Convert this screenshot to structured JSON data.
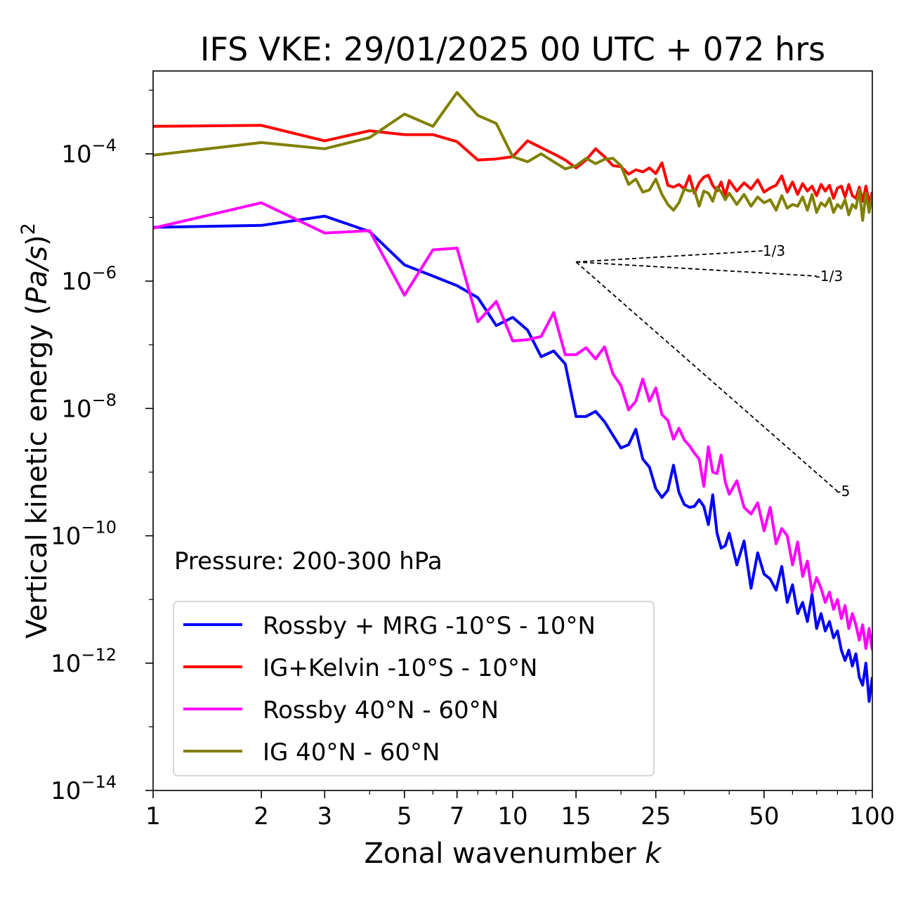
{
  "chart_data": {
    "type": "line",
    "title": "IFS VKE: 29/01/2025 00 UTC + 072 hrs",
    "xlabel": "Zonal wavenumber",
    "xlabel_symbol": "k",
    "ylabel": "Vertical kinetic energy",
    "ylabel_unit_inner": "Pa/s",
    "ylabel_unit_power": "2",
    "xscale": "log",
    "yscale": "log",
    "xlim": [
      1,
      100
    ],
    "ylim": [
      1e-14,
      0.002
    ],
    "x_ticks": [
      1,
      2,
      3,
      5,
      7,
      10,
      15,
      25,
      50,
      100
    ],
    "y_ticks": [
      {
        "value": 1e-14,
        "base": "10",
        "exp": "−14"
      },
      {
        "value": 1e-12,
        "base": "10",
        "exp": "−12"
      },
      {
        "value": 1e-10,
        "base": "10",
        "exp": "−10"
      },
      {
        "value": 1e-08,
        "base": "10",
        "exp": "−8"
      },
      {
        "value": 1e-06,
        "base": "10",
        "exp": "−6"
      },
      {
        "value": 0.0001,
        "base": "10",
        "exp": "−4"
      }
    ],
    "annotation": "Pressure: 200-300 hPa",
    "legend_position": "lower-left",
    "series": [
      {
        "name": "Rossby + MRG -10°S - 10°N",
        "color": "#0000ff",
        "x": [
          1,
          2,
          3,
          4,
          5,
          6,
          7,
          8,
          9,
          10,
          11,
          12,
          13,
          14,
          15,
          16,
          17,
          18,
          19,
          20,
          21,
          22,
          23,
          24,
          25,
          26,
          27,
          28,
          29,
          30,
          31,
          32,
          33,
          34,
          35,
          36,
          37,
          38,
          39,
          40,
          42,
          44,
          46,
          48,
          50,
          52,
          54,
          56,
          58,
          60,
          62,
          64,
          66,
          68,
          70,
          72,
          74,
          76,
          78,
          80,
          82,
          84,
          86,
          88,
          90,
          92,
          94,
          96,
          98,
          100
        ],
        "y": [
          7e-06,
          7.5e-06,
          1.05e-05,
          6e-06,
          1.8e-06,
          1.2e-06,
          8.5e-07,
          5.5e-07,
          2e-07,
          2.7e-07,
          1.7e-07,
          6.5e-08,
          8e-08,
          5e-08,
          7.5e-09,
          7.5e-09,
          9e-09,
          6.2e-09,
          3.8e-09,
          2.4e-09,
          2.7e-09,
          4.7e-09,
          1.6e-09,
          1.2e-09,
          5.5e-10,
          4e-10,
          5.2e-10,
          1.28e-09,
          4.8e-10,
          3.1e-10,
          2.8e-10,
          2.9e-10,
          3.7e-10,
          2.9e-10,
          1.5e-10,
          4.4e-10,
          1.1e-10,
          6.4e-11,
          7e-11,
          1.1e-10,
          3.5e-11,
          8.3e-11,
          1.5e-11,
          5.4e-11,
          2.5e-11,
          2.1e-11,
          1.4e-11,
          3.3e-11,
          9e-12,
          1.7e-11,
          6e-12,
          9e-12,
          4.5e-12,
          1.2e-11,
          3.5e-12,
          6e-12,
          3.2e-12,
          4.5e-12,
          2.5e-12,
          3.2e-12,
          1.6e-12,
          1.1e-12,
          1.6e-12,
          9e-13,
          1.4e-12,
          6e-13,
          4.5e-13,
          1e-12,
          2.5e-13,
          6e-13
        ]
      },
      {
        "name": "IG+Kelvin -10°S - 10°N",
        "color": "#ff0000",
        "x": [
          1,
          2,
          3,
          4,
          5,
          6,
          7,
          8,
          9,
          10,
          11,
          12,
          13,
          14,
          15,
          16,
          17,
          18,
          19,
          20,
          21,
          22,
          23,
          24,
          25,
          26,
          27,
          28,
          29,
          30,
          31,
          32,
          33,
          34,
          35,
          36,
          37,
          38,
          39,
          40,
          42,
          44,
          46,
          48,
          50,
          52,
          54,
          56,
          58,
          60,
          62,
          64,
          66,
          68,
          70,
          72,
          74,
          76,
          78,
          80,
          82,
          84,
          86,
          88,
          90,
          92,
          94,
          96,
          98,
          100
        ],
        "y": [
          0.00027,
          0.00028,
          0.00016,
          0.00023,
          0.0002,
          0.0002,
          0.000155,
          8e-05,
          8.3e-05,
          9e-05,
          0.00016,
          0.000125,
          0.0001,
          8e-05,
          6e-05,
          8e-05,
          0.00012,
          9e-05,
          6.5e-05,
          6.3e-05,
          4.8e-05,
          5.6e-05,
          5.2e-05,
          6e-05,
          4.9e-05,
          7.2e-05,
          3.2e-05,
          3e-05,
          3.3e-05,
          2.8e-05,
          4.5e-05,
          2.4e-05,
          3.5e-05,
          4.3e-05,
          4.6e-05,
          3.2e-05,
          2.6e-05,
          3.6e-05,
          2.2e-05,
          3.8e-05,
          2.6e-05,
          3.5e-05,
          2.8e-05,
          3.9e-05,
          2.5e-05,
          2.9e-05,
          3.2e-05,
          4.5e-05,
          2.5e-05,
          3.6e-05,
          2.3e-05,
          3.4e-05,
          2.6e-05,
          3.1e-05,
          2.2e-05,
          3.3e-05,
          2.6e-05,
          3.2e-05,
          2e-05,
          2.9e-05,
          3.1e-05,
          2.1e-05,
          3.3e-05,
          2.2e-05,
          2e-05,
          3e-05,
          1.8e-05,
          3.1e-05,
          1.7e-05,
          2.5e-05
        ]
      },
      {
        "name": "Rossby 40°N - 60°N",
        "color": "#ff00ff",
        "x": [
          1,
          2,
          3,
          4,
          5,
          6,
          7,
          8,
          9,
          10,
          11,
          12,
          13,
          14,
          15,
          16,
          17,
          18,
          19,
          20,
          21,
          22,
          23,
          24,
          25,
          26,
          27,
          28,
          29,
          30,
          31,
          32,
          33,
          34,
          35,
          36,
          37,
          38,
          39,
          40,
          42,
          44,
          46,
          48,
          50,
          52,
          54,
          56,
          58,
          60,
          62,
          64,
          66,
          68,
          70,
          72,
          74,
          76,
          78,
          80,
          82,
          84,
          86,
          88,
          90,
          92,
          94,
          96,
          98,
          100
        ],
        "y": [
          6.8e-06,
          1.7e-05,
          5.7e-06,
          6.2e-06,
          6e-07,
          3.1e-06,
          3.3e-06,
          2.3e-07,
          4.8e-07,
          1.15e-07,
          1.2e-07,
          1.35e-07,
          3.2e-07,
          7e-08,
          7e-08,
          9e-08,
          6e-08,
          9.3e-08,
          3.5e-08,
          2.3e-08,
          9.5e-09,
          1.3e-08,
          2.9e-08,
          1.3e-08,
          2.1e-08,
          8e-09,
          6.5e-09,
          3.3e-09,
          4.9e-09,
          3.2e-09,
          2.6e-09,
          2e-09,
          1.6e-09,
          6e-10,
          2.5e-09,
          1e-09,
          9.5e-10,
          1.85e-09,
          7e-10,
          4.5e-10,
          7.3e-10,
          2.8e-10,
          2.2e-10,
          3.3e-10,
          1.2e-10,
          2.8e-10,
          7.5e-11,
          1.3e-10,
          1e-10,
          3.5e-11,
          8e-11,
          2.3e-11,
          4e-11,
          1.3e-11,
          2.2e-11,
          1.5e-11,
          9e-12,
          1.3e-11,
          7e-12,
          1e-11,
          5e-12,
          8e-12,
          3.5e-12,
          6e-12,
          4e-12,
          2.3e-12,
          4e-12,
          1.7e-12,
          3.5e-12,
          1.6e-12
        ]
      },
      {
        "name": "IG 40°N - 60°N",
        "color": "#808000",
        "x": [
          1,
          2,
          3,
          4,
          5,
          6,
          7,
          8,
          9,
          10,
          11,
          12,
          13,
          14,
          15,
          16,
          17,
          18,
          19,
          20,
          21,
          22,
          23,
          24,
          25,
          26,
          27,
          28,
          29,
          30,
          31,
          32,
          33,
          34,
          35,
          36,
          37,
          38,
          39,
          40,
          42,
          44,
          46,
          48,
          50,
          52,
          54,
          56,
          58,
          60,
          62,
          64,
          66,
          68,
          70,
          72,
          74,
          76,
          78,
          80,
          82,
          84,
          86,
          88,
          90,
          92,
          94,
          96,
          98,
          100
        ],
        "y": [
          9.5e-05,
          0.00015,
          0.00012,
          0.00018,
          0.00042,
          0.00027,
          0.00092,
          0.0004,
          0.0003,
          9e-05,
          7.5e-05,
          0.0001,
          7.5e-05,
          5.8e-05,
          6.5e-05,
          8.5e-05,
          7e-05,
          8.2e-05,
          8.5e-05,
          6.5e-05,
          3.3e-05,
          4e-05,
          2.5e-05,
          2.7e-05,
          4e-05,
          2.3e-05,
          1.6e-05,
          1.3e-05,
          1.7e-05,
          2.8e-05,
          2.6e-05,
          2.7e-05,
          1.5e-05,
          2.6e-05,
          2.4e-05,
          1.8e-05,
          3e-05,
          2.5e-05,
          1.9e-05,
          2.4e-05,
          1.6e-05,
          2.3e-05,
          1.5e-05,
          2.1e-05,
          1.7e-05,
          1.9e-05,
          1.3e-05,
          2.2e-05,
          1.4e-05,
          1.6e-05,
          1.5e-05,
          2.1e-05,
          1.3e-05,
          2.3e-05,
          1.2e-05,
          1.7e-05,
          1.5e-05,
          2e-05,
          1.2e-05,
          1.6e-05,
          1.4e-05,
          1.9e-05,
          1.1e-05,
          1.6e-05,
          1.4e-05,
          2.7e-05,
          9e-06,
          2.4e-05,
          1.2e-05,
          2.3e-05
        ]
      }
    ],
    "reference_lines": [
      {
        "label": "1/3",
        "x": [
          15,
          50
        ],
        "y": [
          2e-06,
          3e-06
        ]
      },
      {
        "label": "-1/3",
        "x": [
          15,
          70
        ],
        "y": [
          2e-06,
          1.2e-06
        ]
      },
      {
        "label": "-5",
        "x": [
          15,
          80
        ],
        "y": [
          2e-06,
          5e-10
        ]
      }
    ]
  }
}
